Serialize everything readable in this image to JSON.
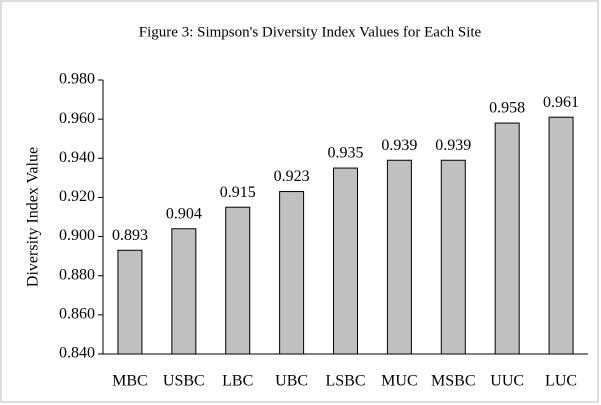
{
  "chart_data": {
    "type": "bar",
    "title": "Figure 3: Simpson's Diversity Index Values for Each Site",
    "y_label": "Diversity Index Value",
    "categories": [
      "MBC",
      "USBC",
      "LBC",
      "UBC",
      "LSBC",
      "MUC",
      "MSBC",
      "UUC",
      "LUC"
    ],
    "values": [
      0.893,
      0.904,
      0.915,
      0.923,
      0.935,
      0.939,
      0.939,
      0.958,
      0.961
    ],
    "color": "#c0c0c0",
    "ylim": [
      0.84,
      0.98
    ],
    "yticks": [
      {
        "value": 0.84,
        "label": "0.840"
      },
      {
        "value": 0.86,
        "label": "0.860"
      },
      {
        "value": 0.88,
        "label": "0.880"
      },
      {
        "value": 0.9,
        "label": "0.900"
      },
      {
        "value": 0.92,
        "label": "0.920"
      },
      {
        "value": 0.94,
        "label": "0.940"
      },
      {
        "value": 0.96,
        "label": "0.960"
      },
      {
        "value": 0.98,
        "label": "0.980"
      }
    ],
    "grid": false
  }
}
